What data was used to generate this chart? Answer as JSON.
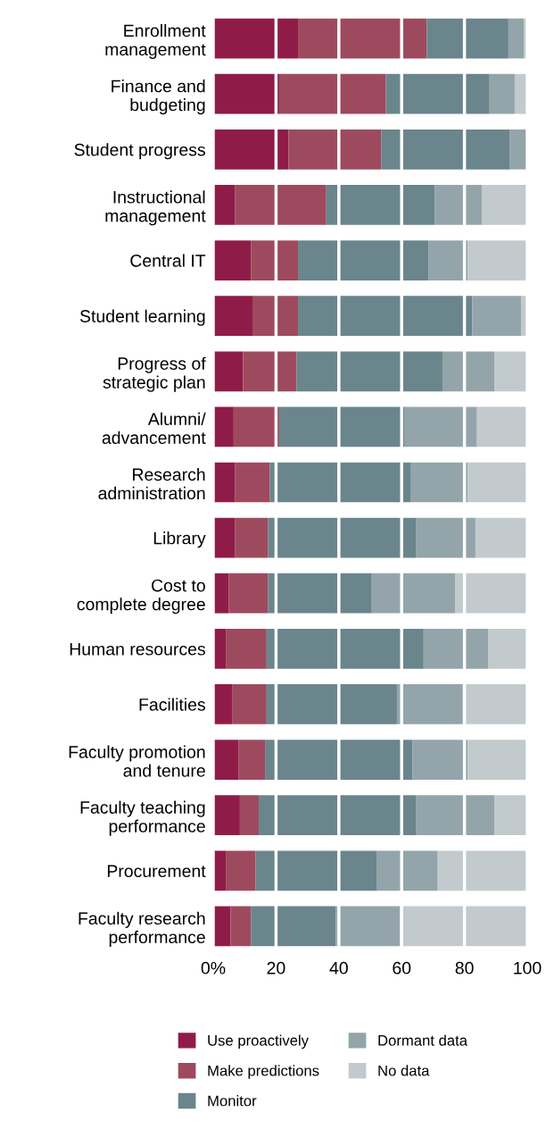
{
  "chart_data": {
    "type": "bar",
    "orientation": "horizontal",
    "stacked": true,
    "categories": [
      "Enrollment\nmanagement",
      "Finance and\nbudgeting",
      "Student progress",
      "Instructional\nmanagement",
      "Central IT",
      "Student learning",
      "Progress of\nstrategic plan",
      "Alumni/\nadvancement",
      "Research\nadministration",
      "Library",
      "Cost to\ncomplete degree",
      "Human resources",
      "Facilities",
      "Faculty promotion\nand tenure",
      "Faculty teaching\nperformance",
      "Procurement",
      "Faculty research\nperformance"
    ],
    "series": [
      {
        "name": "Use proactively",
        "color": "#8f1c48",
        "values": [
          27,
          21,
          24,
          7,
          12,
          12.5,
          9.5,
          6.5,
          7,
          7,
          5,
          4,
          6,
          8,
          8.5,
          4,
          5.5
        ]
      },
      {
        "name": "Make predictions",
        "color": "#9e4a5e",
        "values": [
          41,
          34,
          29.5,
          29,
          15,
          14.5,
          17,
          14.5,
          11,
          10.5,
          12.5,
          13,
          11,
          8.5,
          6,
          9.5,
          6.5
        ]
      },
      {
        "name": "Monitor",
        "color": "#6a858c",
        "values": [
          26,
          33,
          41,
          34.5,
          41.5,
          55.5,
          46.5,
          40,
          45,
          47,
          33,
          50,
          41.5,
          47,
          50,
          38.5,
          27
        ]
      },
      {
        "name": "Dormant data",
        "color": "#93a5aa",
        "values": [
          5,
          8,
          5.5,
          15,
          12.5,
          15.5,
          16.5,
          23,
          18,
          19,
          26.5,
          20.5,
          21,
          17.5,
          25,
          19.5,
          20.5
        ]
      },
      {
        "name": "No data",
        "color": "#c2cacd",
        "values": [
          1,
          4,
          0,
          14.5,
          19,
          2,
          10.5,
          16,
          19,
          16.5,
          23,
          12.5,
          20.5,
          19,
          10.5,
          28.5,
          40.5
        ]
      }
    ],
    "xlim": [
      0,
      100
    ],
    "xticks": [
      {
        "value": 0,
        "label": "0%"
      },
      20,
      40,
      60,
      80,
      100
    ],
    "grid": "x",
    "legend": "bottom"
  }
}
